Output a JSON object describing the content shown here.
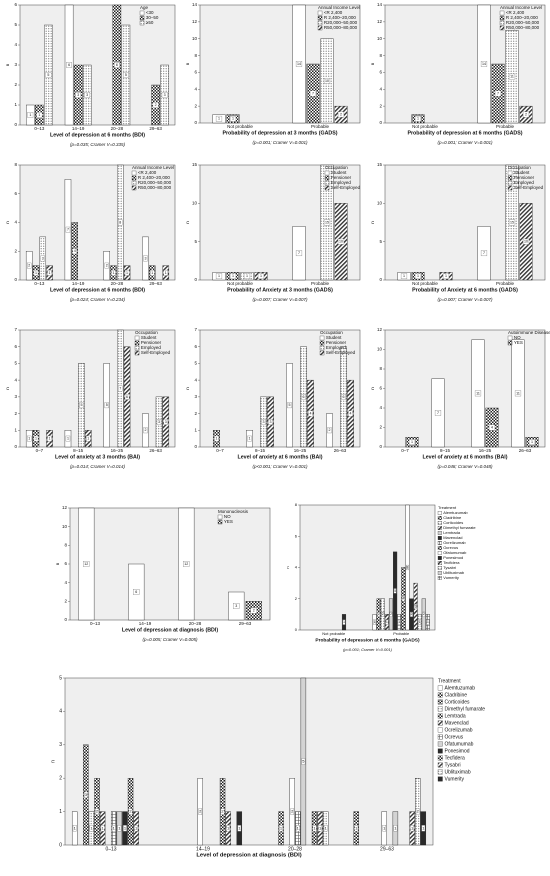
{
  "chart_data": [
    {
      "type": "bar",
      "x_label": "Level of depression at 6 months (BDI)",
      "y_label": "n",
      "note": "(p=0.035; Cramer V=0.335)",
      "legend_title": "Age",
      "categories": [
        "0–13",
        "14–19",
        "20–28",
        "29–63"
      ],
      "ylim": [
        0,
        6
      ],
      "yticks": [
        0,
        1,
        2,
        3,
        4,
        5,
        6
      ],
      "series": [
        {
          "name": "<30",
          "fill": "white",
          "values": [
            1,
            6,
            0,
            0
          ]
        },
        {
          "name": "30–50",
          "fill": "checker",
          "values": [
            1,
            3,
            6,
            2
          ]
        },
        {
          "name": "≥50",
          "fill": "dots",
          "values": [
            5,
            3,
            5,
            3
          ]
        }
      ]
    },
    {
      "type": "bar",
      "x_label": "Probability of depression at 3 months (GADS)",
      "y_label": "n",
      "note": "(p=0.001; Cramer V=0.001)",
      "legend_title": "Annual Income Level",
      "categories": [
        "Not probable",
        "Probable"
      ],
      "ylim": [
        0,
        14
      ],
      "yticks": [
        0,
        2,
        4,
        6,
        8,
        10,
        12,
        14
      ],
      "series": [
        {
          "name": "<R 2,400",
          "fill": "white",
          "values": [
            1,
            14
          ]
        },
        {
          "name": "R 2,400–20,000",
          "fill": "checker",
          "values": [
            1,
            7
          ]
        },
        {
          "name": "R20,000–50,000",
          "fill": "dots",
          "values": [
            0,
            10
          ]
        },
        {
          "name": "R50,000–80,000",
          "fill": "hatch",
          "values": [
            0,
            2
          ]
        }
      ]
    },
    {
      "type": "bar",
      "x_label": "Probability of depression at 6 months (GADS)",
      "y_label": "n",
      "note": "(p=0.001; Cramer V=0.001)",
      "legend_title": "Annual Income Level",
      "categories": [
        "Not probable",
        "Probable"
      ],
      "ylim": [
        0,
        14
      ],
      "yticks": [
        0,
        2,
        4,
        6,
        8,
        10,
        12,
        14
      ],
      "series": [
        {
          "name": "<R 2,400",
          "fill": "white",
          "values": [
            0,
            14
          ]
        },
        {
          "name": "R 2,400–20,000",
          "fill": "checker",
          "values": [
            1,
            7
          ]
        },
        {
          "name": "R20,000–50,000",
          "fill": "dots",
          "values": [
            0,
            11
          ]
        },
        {
          "name": "R50,000–80,000",
          "fill": "hatch",
          "values": [
            0,
            2
          ]
        }
      ]
    },
    {
      "type": "bar",
      "x_label": "Level of depression at 6 months (BDI)",
      "y_label": "n",
      "note": "(p=0.024; Cramer V=0.234)",
      "legend_title": "Annual Income Level",
      "categories": [
        "0–13",
        "14–19",
        "20–28",
        "29–63"
      ],
      "ylim": [
        0,
        8
      ],
      "yticks": [
        0,
        2,
        4,
        6,
        8
      ],
      "series": [
        {
          "name": "<R 2,400",
          "fill": "white",
          "values": [
            2,
            7,
            2,
            3
          ]
        },
        {
          "name": "R 2,400–20,000",
          "fill": "checker",
          "values": [
            1,
            4,
            1,
            1
          ]
        },
        {
          "name": "R20,000–50,000",
          "fill": "dots",
          "values": [
            3,
            0,
            8,
            0
          ]
        },
        {
          "name": "R50,000–80,000",
          "fill": "hatch",
          "values": [
            1,
            0,
            1,
            1
          ]
        }
      ]
    },
    {
      "type": "bar",
      "x_label": "Probability of Anxiety at 3 months (GADS)",
      "y_label": "n",
      "note": "(p=0.007; Cramer V=0.007)",
      "legend_title": "Occupation",
      "categories": [
        "Not probable",
        "Probable"
      ],
      "ylim": [
        0,
        15
      ],
      "yticks": [
        0,
        5,
        10,
        15
      ],
      "series": [
        {
          "name": "Student",
          "fill": "white",
          "values": [
            1,
            7
          ]
        },
        {
          "name": "Pensioner",
          "fill": "checker",
          "values": [
            1,
            0
          ]
        },
        {
          "name": "Employed",
          "fill": "dots",
          "values": [
            1,
            15
          ]
        },
        {
          "name": "Self-Employed",
          "fill": "hatch",
          "values": [
            1,
            10
          ]
        }
      ]
    },
    {
      "type": "bar",
      "x_label": "Probability of Anxiety at 6 months (GADS)",
      "y_label": "n",
      "note": "(p=0.007; Cramer V=0.007)",
      "legend_title": "Occupation",
      "categories": [
        "Not probable",
        "Probable"
      ],
      "ylim": [
        0,
        15
      ],
      "yticks": [
        0,
        5,
        10,
        15
      ],
      "series": [
        {
          "name": "Student",
          "fill": "white",
          "values": [
            1,
            7
          ]
        },
        {
          "name": "Pensioner",
          "fill": "checker",
          "values": [
            1,
            0
          ]
        },
        {
          "name": "Employed",
          "fill": "dots",
          "values": [
            0,
            15
          ]
        },
        {
          "name": "Self-Employed",
          "fill": "hatch",
          "values": [
            1,
            10
          ]
        }
      ]
    },
    {
      "type": "bar",
      "x_label": "Level of anxiety at 3 months (BAI)",
      "y_label": "n",
      "note": "(p=0.014; Cramer V=0.014)",
      "legend_title": "Occupation",
      "categories": [
        "0–7",
        "8–15",
        "16–25",
        "26–63"
      ],
      "ylim": [
        0,
        7
      ],
      "yticks": [
        0,
        1,
        2,
        3,
        4,
        5,
        6,
        7
      ],
      "series": [
        {
          "name": "Student",
          "fill": "white",
          "values": [
            1,
            1,
            5,
            2
          ]
        },
        {
          "name": "Pensioner",
          "fill": "checker",
          "values": [
            1,
            0,
            0,
            0
          ]
        },
        {
          "name": "Employed",
          "fill": "dots",
          "values": [
            0,
            5,
            7,
            3
          ]
        },
        {
          "name": "Self-Employed",
          "fill": "hatch",
          "values": [
            1,
            1,
            6,
            3
          ]
        }
      ]
    },
    {
      "type": "bar",
      "x_label": "Level of anxiety at 6 months (BAI)",
      "y_label": "n",
      "note": "(p<0.001; Cramer V=0.001)",
      "legend_title": "Occupation",
      "categories": [
        "0–7",
        "8–15",
        "16–25",
        "26–63"
      ],
      "ylim": [
        0,
        7
      ],
      "yticks": [
        0,
        1,
        2,
        3,
        4,
        5,
        6,
        7
      ],
      "series": [
        {
          "name": "Student",
          "fill": "white",
          "values": [
            0,
            1,
            5,
            2
          ]
        },
        {
          "name": "Pensioner",
          "fill": "checker",
          "values": [
            1,
            0,
            0,
            0
          ]
        },
        {
          "name": "Employed",
          "fill": "dots",
          "values": [
            0,
            3,
            6,
            6
          ]
        },
        {
          "name": "Self-Employed",
          "fill": "hatch",
          "values": [
            0,
            3,
            4,
            4
          ]
        }
      ]
    },
    {
      "type": "bar",
      "x_label": "Level of anxiety at 6 months (BAI)",
      "y_label": "n",
      "note": "(p=0.048; Cramer V=0.048)",
      "legend_title": "Autoimmune Diseases",
      "categories": [
        "0–7",
        "8–15",
        "16–25",
        "26–63"
      ],
      "ylim": [
        0,
        12
      ],
      "yticks": [
        0,
        2,
        4,
        6,
        8,
        10,
        12
      ],
      "series": [
        {
          "name": "NO",
          "fill": "white",
          "values": [
            0,
            7,
            11,
            11
          ]
        },
        {
          "name": "YES",
          "fill": "checker",
          "values": [
            1,
            0,
            4,
            1
          ]
        }
      ]
    },
    {
      "type": "bar",
      "x_label": "Level of depression at diagnosis (BDI)",
      "y_label": "n",
      "note": "(p=0.005; Cramer V=0.005)",
      "legend_title": "Mononucleosis",
      "categories": [
        "0–13",
        "14–19",
        "20–28",
        "29–63"
      ],
      "ylim": [
        0,
        12
      ],
      "yticks": [
        0,
        2,
        4,
        6,
        8,
        10,
        12
      ],
      "series": [
        {
          "name": "NO",
          "fill": "white",
          "values": [
            12,
            6,
            12,
            3
          ]
        },
        {
          "name": "YES",
          "fill": "checker",
          "values": [
            0,
            0,
            0,
            2
          ]
        }
      ]
    },
    {
      "type": "bar",
      "x_label": "Probability of depression at 6 months (GADS)",
      "y_label": "n",
      "note": "(p=0.001; Cramer V=0.001)",
      "legend_title": "Treatment",
      "categories": [
        "Not probable",
        "Probable"
      ],
      "ylim": [
        0,
        8
      ],
      "yticks": [
        0,
        2,
        4,
        6,
        8
      ],
      "series": [
        {
          "name": "Alemtuzumab",
          "fill": "white",
          "values": [
            0,
            1
          ]
        },
        {
          "name": "Cladribine",
          "fill": "checker",
          "values": [
            0,
            2
          ]
        },
        {
          "name": "Corticoides",
          "fill": "dots",
          "values": [
            0,
            2
          ]
        },
        {
          "name": "Dimethyl fumarate",
          "fill": "hatch",
          "values": [
            0,
            1
          ]
        },
        {
          "name": "Lemtrada",
          "fill": "light",
          "values": [
            0,
            2
          ]
        },
        {
          "name": "Mavenclad",
          "fill": "dark",
          "values": [
            0,
            5
          ]
        },
        {
          "name": "Ocrelizumab",
          "fill": "grid",
          "values": [
            0,
            1
          ]
        },
        {
          "name": "Ocrevus",
          "fill": "checker",
          "values": [
            0,
            4
          ]
        },
        {
          "name": "Ofatumumab",
          "fill": "white",
          "values": [
            0,
            8
          ]
        },
        {
          "name": "Ponesimod",
          "fill": "dark",
          "values": [
            1,
            2
          ]
        },
        {
          "name": "Tecfidera",
          "fill": "hatch",
          "values": [
            0,
            3
          ]
        },
        {
          "name": "Tysabri",
          "fill": "dots",
          "values": [
            0,
            1
          ]
        },
        {
          "name": "Ublituximab",
          "fill": "light",
          "values": [
            0,
            2
          ]
        },
        {
          "name": "Vumerity",
          "fill": "grid",
          "values": [
            0,
            1
          ]
        }
      ]
    },
    {
      "type": "bar",
      "x_label": "Level of depression at diagnosis (BDI)",
      "y_label": "n",
      "legend_title": "Treatment",
      "categories": [
        "0–13",
        "14–19",
        "20–28",
        "29–63"
      ],
      "ylim": [
        0,
        5
      ],
      "yticks": [
        0,
        1,
        2,
        3,
        4,
        5
      ],
      "series": [
        {
          "name": "Alemtuzumab",
          "fill": "white",
          "values": [
            1,
            0,
            0,
            0
          ]
        },
        {
          "name": "Cladribine",
          "fill": "checker",
          "values": [
            0,
            0,
            0,
            1
          ]
        },
        {
          "name": "Corticoides",
          "fill": "checker",
          "values": [
            3,
            0,
            0,
            0
          ]
        },
        {
          "name": "Dimethyl fumarate",
          "fill": "dots",
          "values": [
            1,
            0,
            0,
            0
          ]
        },
        {
          "name": "Lemtrada",
          "fill": "checker",
          "values": [
            2,
            0,
            1,
            0
          ]
        },
        {
          "name": "Mavenclad",
          "fill": "hatch",
          "values": [
            1,
            0,
            0,
            0
          ]
        },
        {
          "name": "Ocrelizumab",
          "fill": "white",
          "values": [
            0,
            2,
            2,
            1
          ]
        },
        {
          "name": "Ocrevus",
          "fill": "grid",
          "values": [
            1,
            0,
            1,
            0
          ]
        },
        {
          "name": "Ofatumumab",
          "fill": "light",
          "values": [
            1,
            0,
            5,
            1
          ]
        },
        {
          "name": "Ponesimod",
          "fill": "dark",
          "values": [
            1,
            0,
            0,
            0
          ]
        },
        {
          "name": "Tecfidera",
          "fill": "checker",
          "values": [
            2,
            2,
            1,
            0
          ]
        },
        {
          "name": "Tysabri",
          "fill": "hatch",
          "values": [
            1,
            1,
            1,
            1
          ]
        },
        {
          "name": "Ublituximab",
          "fill": "dots",
          "values": [
            0,
            0,
            1,
            2
          ]
        },
        {
          "name": "Vumerity",
          "fill": "dark",
          "values": [
            0,
            1,
            0,
            1
          ]
        }
      ]
    }
  ]
}
